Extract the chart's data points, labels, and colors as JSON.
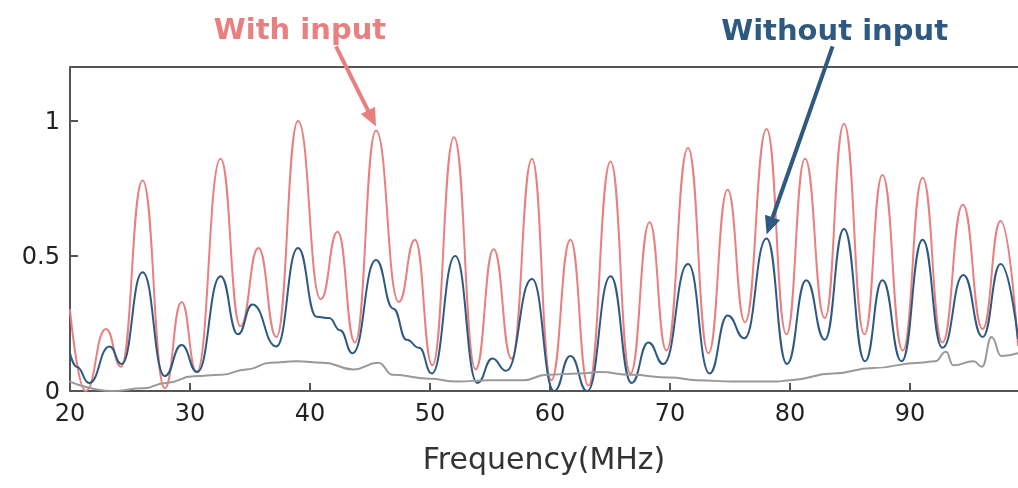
{
  "chart_data": {
    "type": "line",
    "xlabel": "Frequency(MHz)",
    "xlim": [
      20,
      99
    ],
    "xticks": [
      20,
      30,
      40,
      50,
      60,
      70,
      80,
      90
    ],
    "ylim": [
      0,
      1.2
    ],
    "yticks": [
      0,
      0.5,
      1
    ],
    "grid": false,
    "legend": false,
    "marker": "none",
    "line_style": "solid",
    "series": [
      {
        "name": "With input",
        "color": "#e88080",
        "x": [
          20,
          21.3,
          23,
          24.25,
          26.05,
          27.9,
          29.3,
          30.55,
          32.55,
          34.2,
          35.7,
          37.2,
          39,
          40.9,
          42.3,
          43.75,
          45.5,
          47.4,
          48.75,
          50.2,
          52,
          53.8,
          55.3,
          56.8,
          58.5,
          60.1,
          61.7,
          63.2,
          65.05,
          66.7,
          68.3,
          69.7,
          71.5,
          73.2,
          74.8,
          76.25,
          78.05,
          79.7,
          81.25,
          82.9,
          84.5,
          86.2,
          87.7,
          89.4,
          91.05,
          92.7,
          94.4,
          96.05,
          97.55,
          99
        ],
        "values": [
          0.3,
          0,
          0.23,
          0.09,
          0.78,
          0.01,
          0.33,
          0.07,
          0.86,
          0.24,
          0.53,
          0.2,
          1,
          0.34,
          0.59,
          0.18,
          0.965,
          0.33,
          0.56,
          0.095,
          0.94,
          0.08,
          0.525,
          0.12,
          0.86,
          0.04,
          0.56,
          0.02,
          0.85,
          0.065,
          0.625,
          0.15,
          0.9,
          0.14,
          0.745,
          0.255,
          0.97,
          0.21,
          0.86,
          0.27,
          0.99,
          0.21,
          0.8,
          0.15,
          0.79,
          0.18,
          0.69,
          0.23,
          0.63,
          0.17
        ]
      },
      {
        "name": "Without input",
        "color": "#2e5a82",
        "x": [
          20,
          20.55,
          21.6,
          23.3,
          24.3,
          26.05,
          27.9,
          29.3,
          30.6,
          32.55,
          34,
          35.2,
          37.2,
          39,
          40.55,
          41.6,
          42.5,
          43.55,
          45.5,
          46.95,
          48.05,
          49.1,
          50.15,
          52.1,
          53.95,
          55.2,
          56.35,
          58.5,
          60.35,
          61.7,
          63.1,
          65.05,
          66.8,
          68.2,
          69.45,
          71.5,
          73.3,
          74.8,
          76.2,
          78.05,
          79.75,
          81.35,
          82.9,
          84.5,
          86.25,
          87.7,
          89.3,
          91.05,
          92.7,
          94.45,
          96.05,
          97.55,
          99
        ],
        "values": [
          0.14,
          0.09,
          0.03,
          0.165,
          0.1,
          0.44,
          0.055,
          0.17,
          0.07,
          0.425,
          0.21,
          0.32,
          0.165,
          0.53,
          0.275,
          0.27,
          0.225,
          0.14,
          0.485,
          0.305,
          0.19,
          0.16,
          0.065,
          0.5,
          0.03,
          0.12,
          0.075,
          0.415,
          0,
          0.13,
          0,
          0.425,
          0.03,
          0.18,
          0.1,
          0.47,
          0.065,
          0.28,
          0.195,
          0.565,
          0.1,
          0.41,
          0.19,
          0.6,
          0.11,
          0.41,
          0.11,
          0.56,
          0.16,
          0.43,
          0.2,
          0.47,
          0.195
        ]
      },
      {
        "color": "#999999",
        "x": [
          20,
          23.5,
          26.1,
          28,
          30.3,
          32.6,
          34.7,
          36.7,
          38.9,
          41.1,
          43.6,
          45.7,
          46.9,
          50,
          52.2,
          55,
          57.8,
          59.7,
          62.5,
          64.2,
          66.7,
          70,
          72.2,
          75.3,
          78.9,
          80,
          83.6,
          86.9,
          90.8,
          92.1,
          93,
          93.6,
          95.3,
          96,
          96.8,
          97.6,
          99
        ],
        "values": [
          0.035,
          0,
          0.01,
          0.03,
          0.055,
          0.06,
          0.08,
          0.105,
          0.11,
          0.105,
          0.08,
          0.105,
          0.06,
          0.045,
          0.035,
          0.04,
          0.04,
          0.06,
          0.065,
          0.07,
          0.06,
          0.05,
          0.04,
          0.035,
          0.035,
          0.04,
          0.065,
          0.085,
          0.105,
          0.11,
          0.145,
          0.095,
          0.11,
          0.09,
          0.2,
          0.13,
          0.14
        ]
      }
    ]
  }
}
